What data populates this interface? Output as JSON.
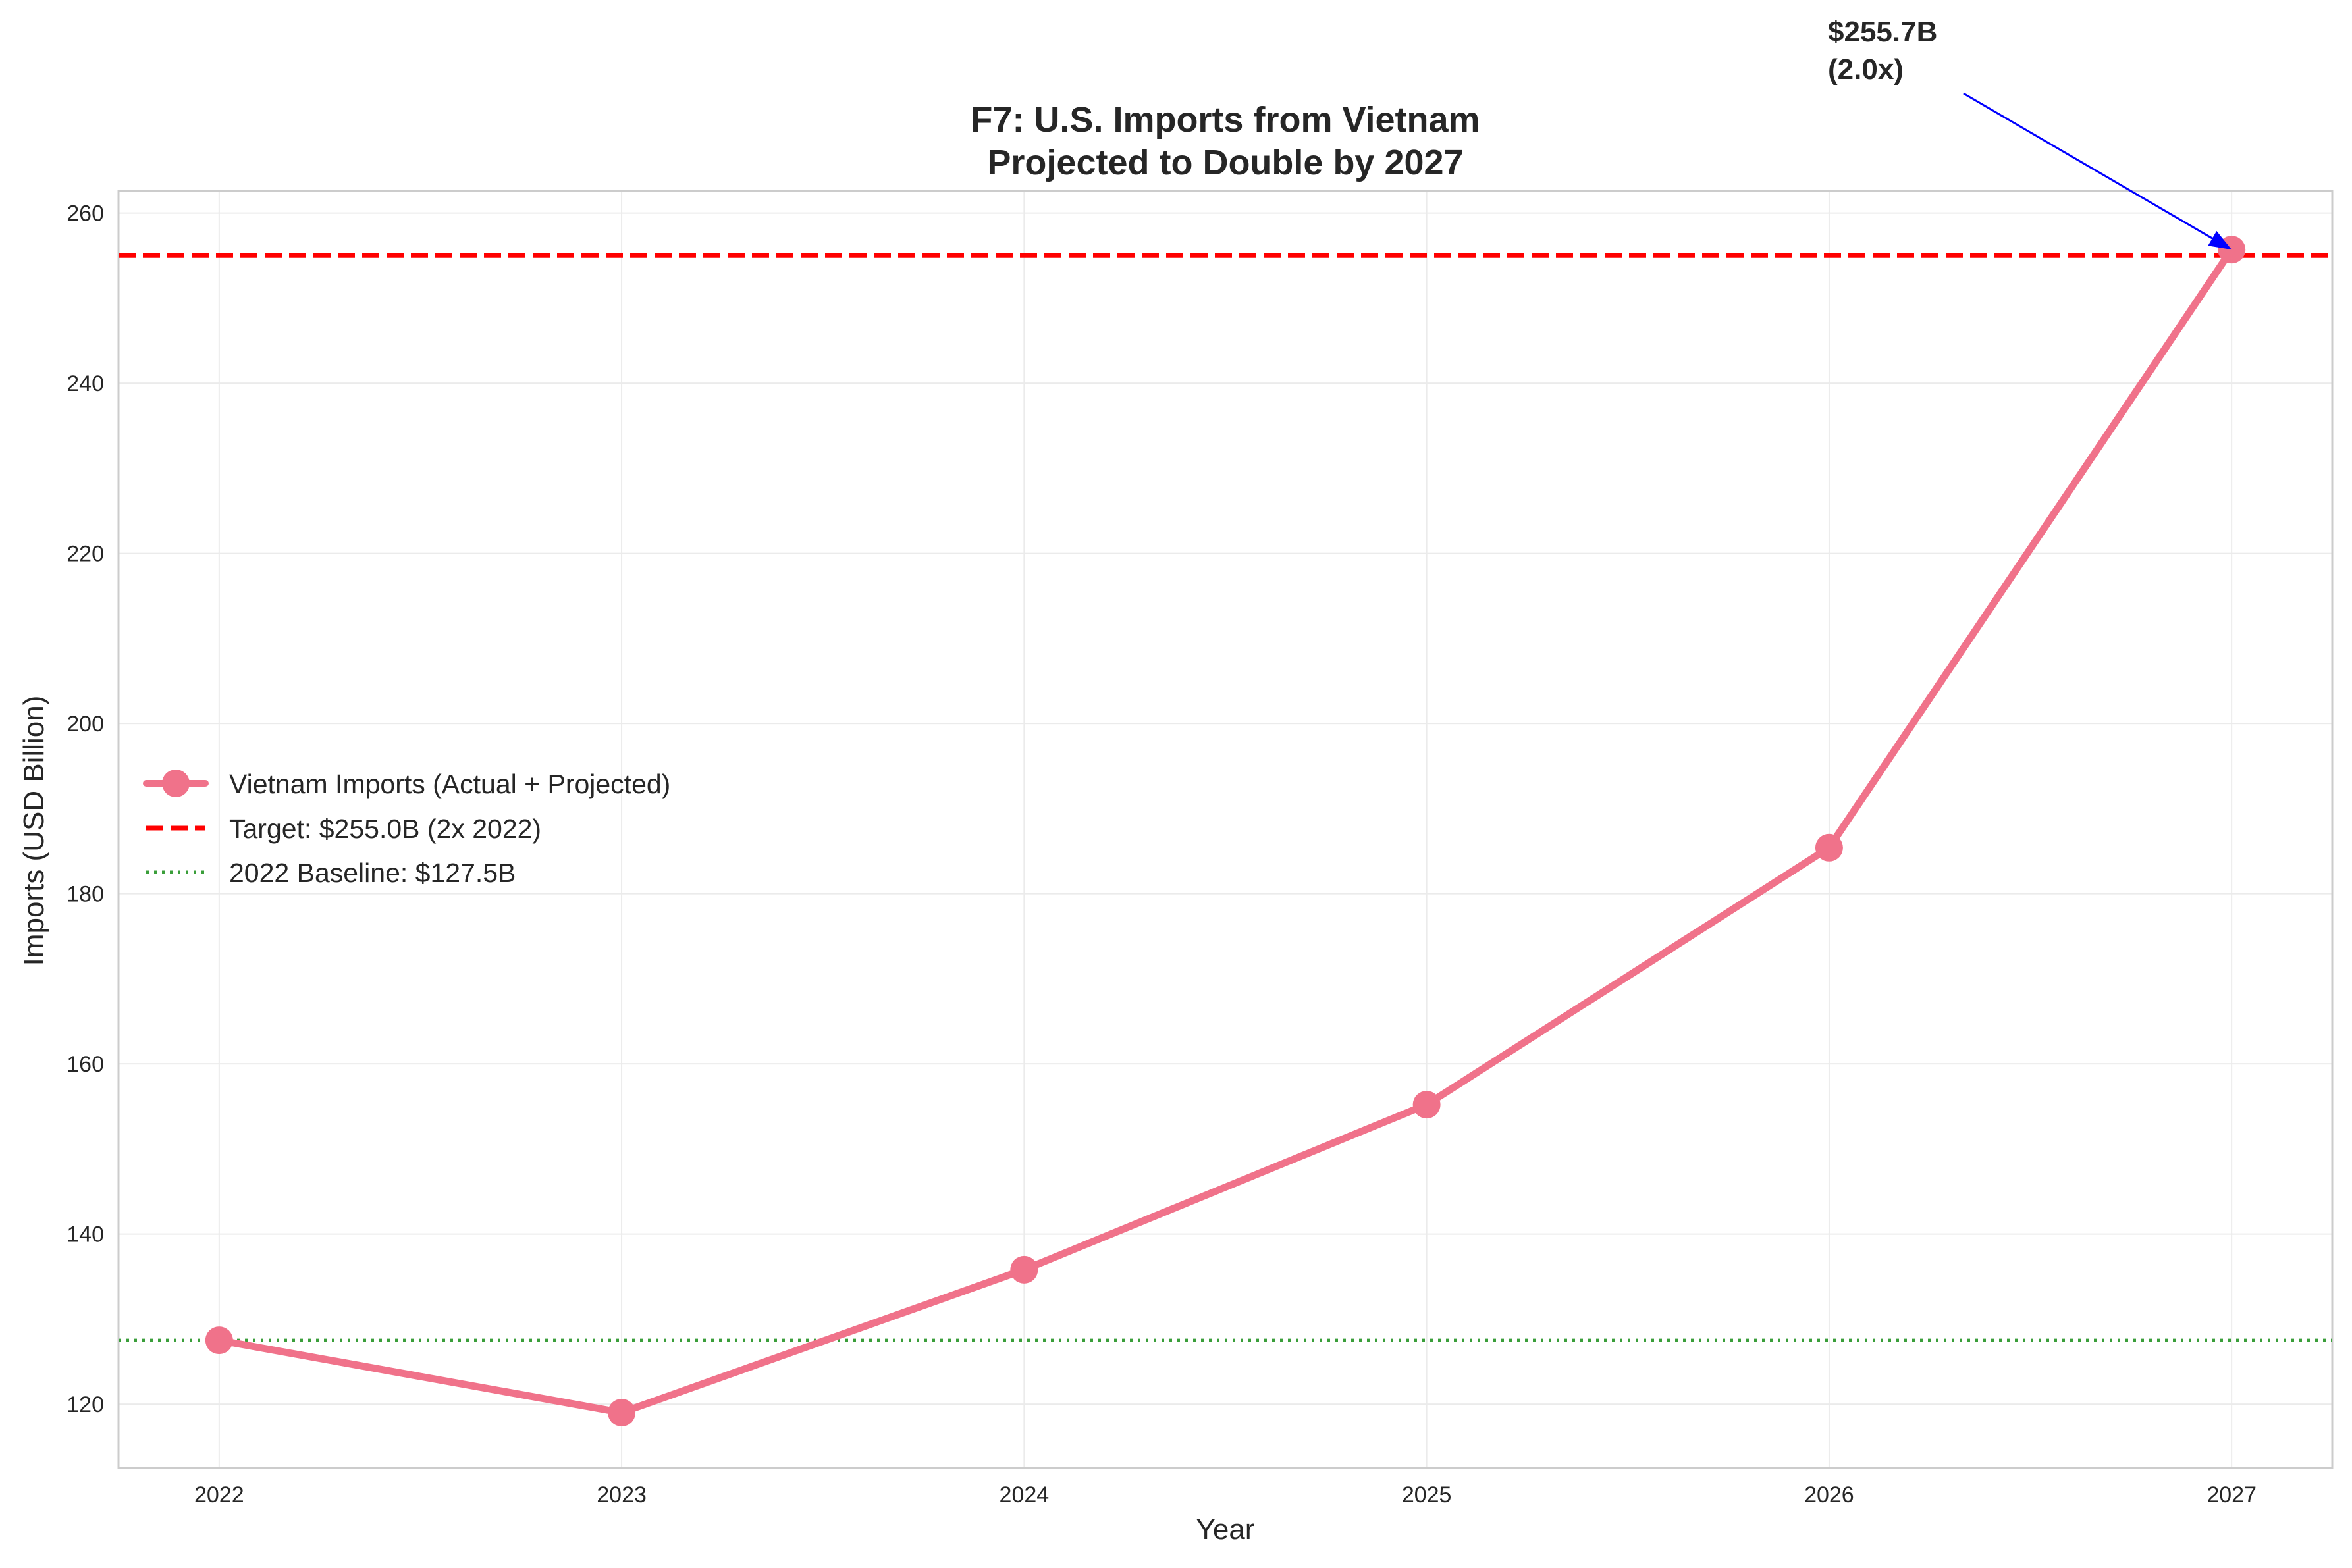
{
  "chart_data": {
    "type": "line",
    "title_lines": [
      "F7: U.S. Imports from Vietnam",
      "Projected to Double by 2027"
    ],
    "xlabel": "Year",
    "ylabel": "Imports (USD Billion)",
    "x": [
      2022,
      2023,
      2024,
      2025,
      2026,
      2027
    ],
    "x_tick_labels": [
      "2022",
      "2023",
      "2024",
      "2025",
      "2026",
      "2027"
    ],
    "xlim": [
      2021.75,
      2027.25
    ],
    "ylim": [
      112.5,
      262.6
    ],
    "y_ticks": [
      120,
      140,
      160,
      180,
      200,
      220,
      240,
      260
    ],
    "y_tick_labels": [
      "120",
      "140",
      "160",
      "180",
      "200",
      "220",
      "240",
      "260"
    ],
    "grid": true,
    "legend_position": "center-left",
    "series": [
      {
        "name": "Vietnam Imports (Actual + Projected)",
        "values": [
          127.5,
          119.0,
          135.8,
          155.2,
          185.4,
          255.7
        ],
        "color": "#f0728a",
        "style": "solid",
        "marker": "circle"
      }
    ],
    "reference_lines": [
      {
        "name": "Target: $255.0B (2x 2022)",
        "y": 255.0,
        "color": "#ff0000",
        "style": "dashed"
      },
      {
        "name": "2022 Baseline: $127.5B",
        "y": 127.5,
        "color": "#3a9e3a",
        "style": "dotted"
      }
    ],
    "annotation": {
      "lines": [
        "$255.7B",
        "(2.0x)"
      ],
      "target_x": 2027,
      "target_y": 255.7,
      "arrow_color": "#0000ff"
    }
  }
}
